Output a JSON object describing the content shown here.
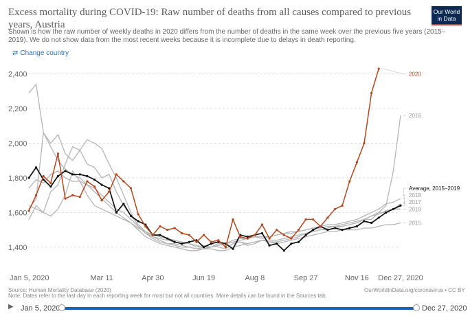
{
  "header": {
    "title": "Excess mortality during COVID-19: Raw number of deaths from all causes compared to previous years, Austria",
    "subtitle": "Shown is how the raw number of weekly deaths in 2020 differs from the number of deaths in the same week over the previous five years (2015–2019). We do not show data from the most recent weeks because it is incomplete due to delays in death reporting.",
    "logo_line1": "Our World",
    "logo_line2": "in Data",
    "change_country": "Change country"
  },
  "footer": {
    "source": "Source: Human Mortality Database (2020)",
    "note": "Note: Dates refer to the last day in each reporting week for most but not all countries. More details can be found in the Sources tab.",
    "license": "OurWorldInData.org/coronavirus • CC BY"
  },
  "timeline": {
    "start": "Jan 5, 2020",
    "end": "Dec 27, 2020"
  },
  "colors": {
    "2020": "#b5461e",
    "average": "#111111",
    "past": "#b5b5b5"
  },
  "chart_data": {
    "type": "line",
    "ylim": [
      1300,
      2450
    ],
    "yticks": [
      1400,
      1600,
      1800,
      2000,
      2200,
      2400
    ],
    "ytick_labels": [
      "1,400",
      "1,600",
      "1,800",
      "2,000",
      "2,200",
      "2,400"
    ],
    "xticks": [
      {
        "week": 1,
        "label": "Jan 5, 2020"
      },
      {
        "week": 11,
        "label": "Mar 11"
      },
      {
        "week": 18,
        "label": "Apr 30"
      },
      {
        "week": 25,
        "label": "Jun 19"
      },
      {
        "week": 32,
        "label": "Aug 8"
      },
      {
        "week": 39,
        "label": "Sep 27"
      },
      {
        "week": 46,
        "label": "Nov 16"
      },
      {
        "week": 52,
        "label": "Dec 27, 2020"
      }
    ],
    "grid": true,
    "legend_placement": "right",
    "series": [
      {
        "name": "2015",
        "color": "#b5b5b5",
        "width": 1.3,
        "values": [
          1640,
          1620,
          1600,
          1580,
          1620,
          1700,
          1840,
          1780,
          1700,
          1640,
          1620,
          1600,
          1580,
          1560,
          1540,
          1500,
          1460,
          1440,
          1420,
          1410,
          1400,
          1390,
          1380,
          1380,
          1390,
          1390,
          1380,
          1380,
          1400,
          1410,
          1420,
          1430,
          1440,
          1430,
          1420,
          1430,
          1440,
          1450,
          1460,
          1470,
          1480,
          1490,
          1490,
          1500,
          1500,
          1500,
          1510,
          1510,
          1520,
          1530,
          1530,
          1540
        ]
      },
      {
        "name": "2016",
        "color": "#b5b5b5",
        "width": 1.3,
        "values": [
          2290,
          2340,
          2060,
          1980,
          1900,
          1850,
          1820,
          1800,
          1760,
          1720,
          1680,
          1640,
          1600,
          1570,
          1540,
          1510,
          1490,
          1470,
          1460,
          1450,
          1440,
          1430,
          1420,
          1410,
          1400,
          1420,
          1400,
          1390,
          1420,
          1430,
          1410,
          1420,
          1440,
          1430,
          1430,
          1440,
          1450,
          1460,
          1480,
          1490,
          1500,
          1500,
          1510,
          1520,
          1530,
          1540,
          1560,
          1580,
          1600,
          1640,
          1840,
          2160
        ]
      },
      {
        "name": "2017",
        "color": "#b5b5b5",
        "width": 1.3,
        "values": [
          1620,
          1680,
          2060,
          2000,
          2050,
          1940,
          1900,
          1960,
          1880,
          1860,
          1800,
          1820,
          1720,
          1640,
          1580,
          1530,
          1490,
          1460,
          1450,
          1440,
          1430,
          1420,
          1420,
          1400,
          1410,
          1400,
          1410,
          1420,
          1430,
          1430,
          1420,
          1430,
          1440,
          1440,
          1440,
          1450,
          1460,
          1470,
          1480,
          1490,
          1500,
          1510,
          1520,
          1520,
          1530,
          1540,
          1560,
          1560,
          1600,
          1600,
          1620,
          1650
        ]
      },
      {
        "name": "2018",
        "color": "#b5b5b5",
        "width": 1.3,
        "values": [
          1560,
          1640,
          1600,
          1720,
          1760,
          1880,
          1980,
          1960,
          2020,
          2000,
          1970,
          1880,
          1800,
          1700,
          1600,
          1520,
          1480,
          1450,
          1430,
          1420,
          1410,
          1400,
          1400,
          1390,
          1390,
          1400,
          1420,
          1420,
          1430,
          1440,
          1450,
          1460,
          1450,
          1460,
          1470,
          1480,
          1480,
          1490,
          1500,
          1510,
          1520,
          1530,
          1530,
          1540,
          1550,
          1560,
          1580,
          1600,
          1620,
          1650,
          1660,
          1680
        ]
      },
      {
        "name": "2019",
        "color": "#b5b5b5",
        "width": 1.3,
        "values": [
          1740,
          1790,
          1770,
          1820,
          1840,
          1800,
          1780,
          1780,
          1760,
          1740,
          1700,
          1660,
          1620,
          1600,
          1560,
          1520,
          1480,
          1460,
          1440,
          1420,
          1420,
          1410,
          1400,
          1390,
          1400,
          1400,
          1420,
          1420,
          1440,
          1450,
          1450,
          1460,
          1460,
          1460,
          1470,
          1480,
          1490,
          1490,
          1500,
          1510,
          1510,
          1520,
          1520,
          1530,
          1540,
          1550,
          1560,
          1580,
          1590,
          1610,
          1620,
          1620
        ]
      },
      {
        "name": "Average, 2015–2019",
        "color": "#111111",
        "width": 1.7,
        "markers": true,
        "values": [
          1800,
          1860,
          1790,
          1750,
          1810,
          1840,
          1820,
          1820,
          1810,
          1790,
          1760,
          1740,
          1600,
          1650,
          1580,
          1550,
          1530,
          1470,
          1470,
          1450,
          1430,
          1420,
          1430,
          1440,
          1400,
          1420,
          1430,
          1420,
          1390,
          1470,
          1460,
          1470,
          1480,
          1410,
          1420,
          1380,
          1420,
          1430,
          1470,
          1500,
          1520,
          1500,
          1510,
          1500,
          1510,
          1520,
          1550,
          1540,
          1570,
          1600,
          1620,
          1640
        ]
      },
      {
        "name": "2020",
        "color": "#b5461e",
        "width": 1.5,
        "markers": true,
        "values": [
          1610,
          1700,
          1810,
          1770,
          1940,
          1680,
          1700,
          1690,
          1780,
          1750,
          1670,
          1720,
          1820,
          1780,
          1740,
          1590,
          1520,
          1470,
          1520,
          1500,
          1510,
          1480,
          1470,
          1430,
          1470,
          1430,
          1440,
          1400,
          1560,
          1460,
          1450,
          1470,
          1530,
          1450,
          1500,
          1470,
          1450,
          1500,
          1560,
          1560,
          1520,
          1570,
          1620,
          1640,
          1780,
          1890,
          2000,
          2290,
          2430
        ]
      }
    ],
    "end_labels": [
      {
        "series": "2020",
        "text": "2020",
        "color": "#b5461e",
        "at": 2400
      },
      {
        "series": "2016",
        "text": "2016",
        "color": "#999999",
        "at": 2160
      },
      {
        "series": "Average, 2015–2019",
        "text": "Average, 2015–2019",
        "color": "#111111",
        "at": 1740
      },
      {
        "series": "2018",
        "text": "2018",
        "color": "#999999",
        "at": 1700
      },
      {
        "series": "2017",
        "text": "2017",
        "color": "#999999",
        "at": 1660
      },
      {
        "series": "2019",
        "text": "2019",
        "color": "#999999",
        "at": 1620
      },
      {
        "series": "2015",
        "text": "2015",
        "color": "#999999",
        "at": 1540
      }
    ]
  }
}
